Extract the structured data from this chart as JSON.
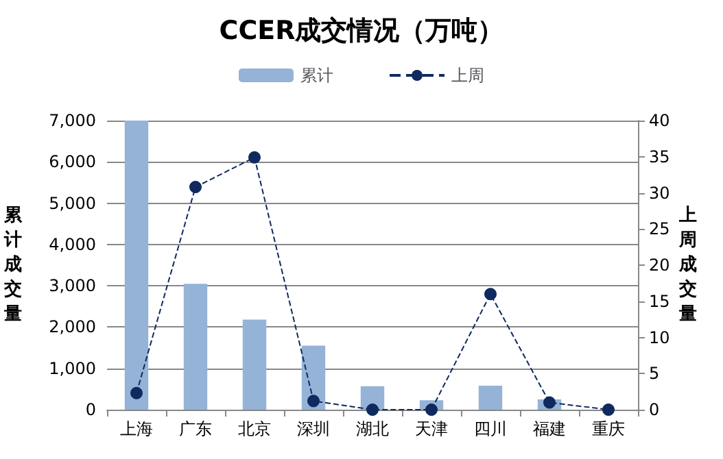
{
  "chart_data": {
    "type": "bar",
    "title": "CCER成交情况（万吨）",
    "ylabel": "累计成交量",
    "y2label": "上周成交量",
    "categories": [
      "上海",
      "广东",
      "北京",
      "深圳",
      "湖北",
      "天津",
      "四川",
      "福建",
      "重庆"
    ],
    "series": [
      {
        "name": "累计",
        "color": "#95b3d7",
        "values": [
          7000,
          3050,
          2180,
          1550,
          570,
          230,
          580,
          250,
          null
        ]
      },
      {
        "name": "上周",
        "type": "line",
        "axis": "y2",
        "color": "#0f2a5e",
        "marker": "circle",
        "line_style": "dashed",
        "values": [
          2.3,
          30.8,
          34.9,
          1.2,
          0,
          0,
          16,
          1,
          0
        ]
      }
    ],
    "ylim": [
      0,
      7000
    ],
    "yticks": [
      0,
      {
        "value": 1000,
        "label": "1,000"
      },
      {
        "value": 2000,
        "label": "2,000"
      },
      {
        "value": 3000,
        "label": "3,000"
      },
      {
        "value": 4000,
        "label": "4,000"
      },
      {
        "value": 5000,
        "label": "5,000"
      },
      {
        "value": 6000,
        "label": "6,000"
      },
      {
        "value": 7000,
        "label": "7,000"
      }
    ],
    "y2lim": [
      0,
      40
    ],
    "y2ticks": [
      0,
      5,
      10,
      15,
      20,
      25,
      30,
      35,
      40
    ],
    "grid": "y",
    "legend": "top"
  }
}
